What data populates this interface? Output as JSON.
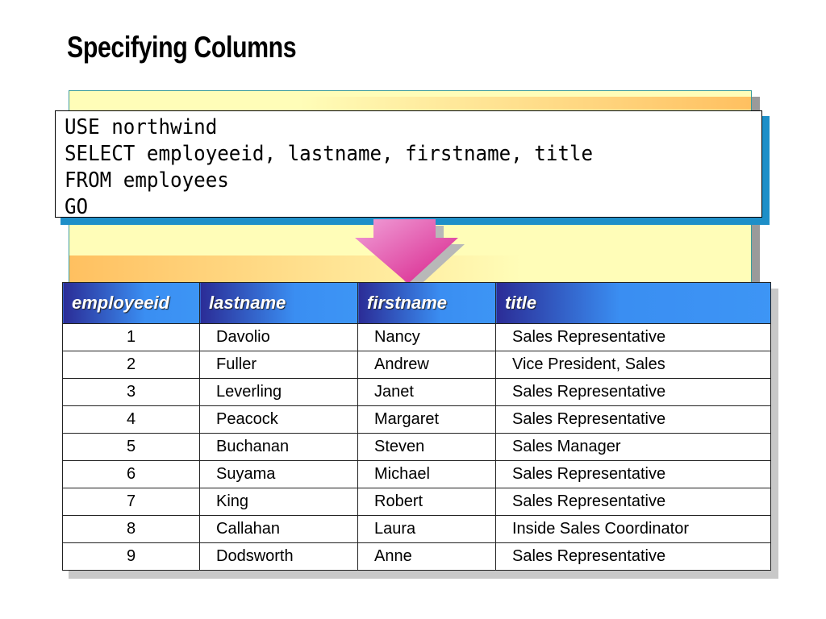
{
  "title": "Specifying Columns",
  "code": {
    "lines": [
      "USE northwind",
      "SELECT employeeid, lastname, firstname, title",
      "FROM employees",
      "GO"
    ]
  },
  "colors": {
    "header_dark": "#2b2c96",
    "header_light": "#3d95f5",
    "note_bg": "#fffdb8",
    "arrow": "#e040a0",
    "code_shadow": "#1e8fc8"
  },
  "table": {
    "columns": [
      "employeeid",
      "lastname",
      "firstname",
      "title"
    ],
    "rows": [
      [
        "1",
        "Davolio",
        "Nancy",
        "Sales Representative"
      ],
      [
        "2",
        "Fuller",
        "Andrew",
        "Vice President, Sales"
      ],
      [
        "3",
        "Leverling",
        "Janet",
        "Sales Representative"
      ],
      [
        "4",
        "Peacock",
        "Margaret",
        "Sales Representative"
      ],
      [
        "5",
        "Buchanan",
        "Steven",
        "Sales Manager"
      ],
      [
        "6",
        "Suyama",
        "Michael",
        "Sales Representative"
      ],
      [
        "7",
        "King",
        "Robert",
        "Sales Representative"
      ],
      [
        "8",
        "Callahan",
        "Laura",
        "Inside Sales Coordinator"
      ],
      [
        "9",
        "Dodsworth",
        "Anne",
        "Sales Representative"
      ]
    ]
  }
}
